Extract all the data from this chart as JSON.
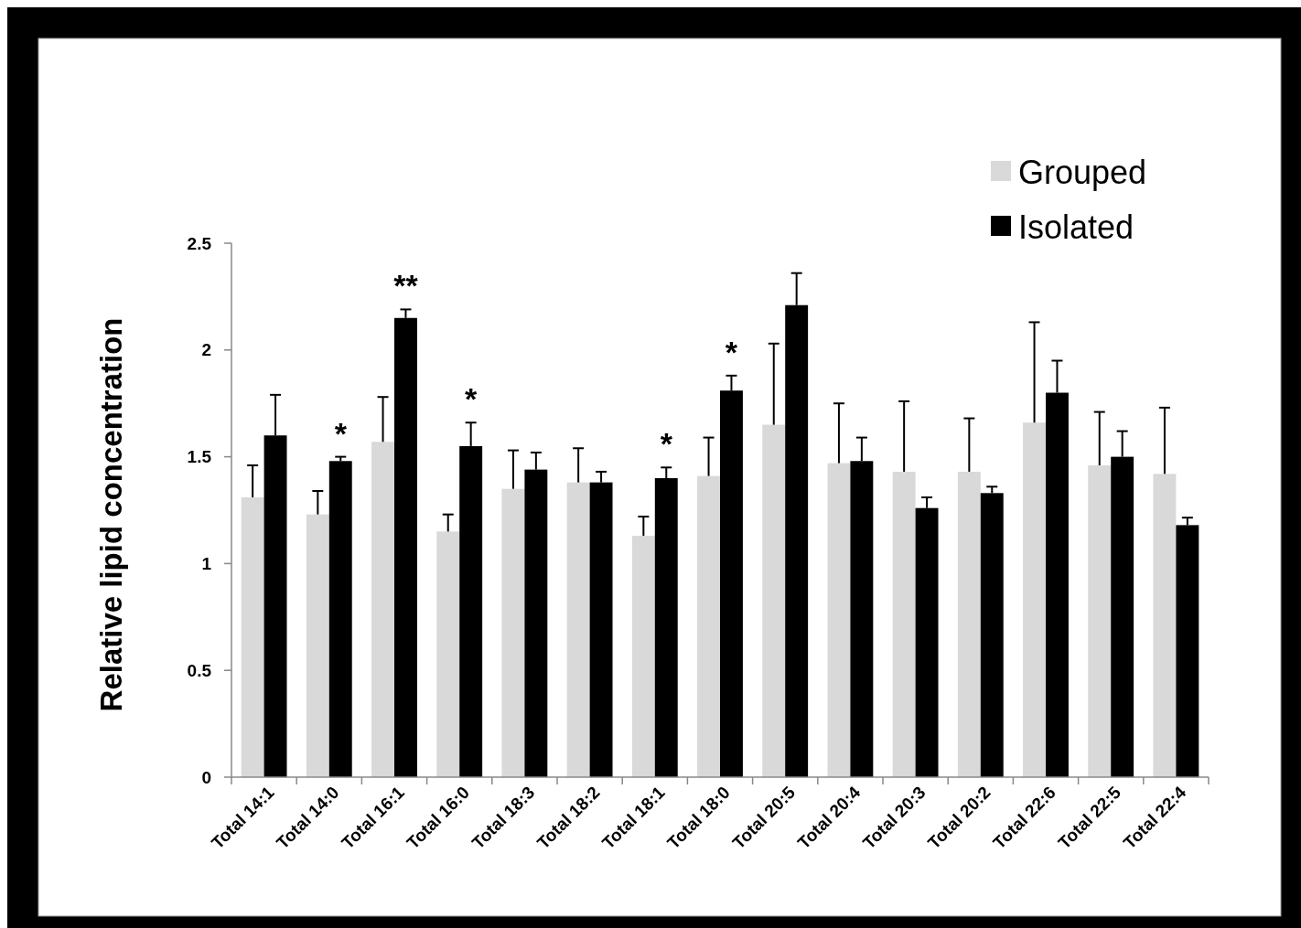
{
  "chart_data": {
    "type": "bar",
    "ylabel": "Relative lipid concentration",
    "categories": [
      "Total 14:1",
      "Total 14:0",
      "Total 16:1",
      "Total 16:0",
      "Total 18:3",
      "Total 18:2",
      "Total 18:1",
      "Total 18:0",
      "Total 20:5",
      "Total 20:4",
      "Total 20:3",
      "Total 20:2",
      "Total 22:6",
      "Total 22:5",
      "Total 22:4"
    ],
    "series": [
      {
        "name": "Grouped",
        "color": "#d9d9d9",
        "values": [
          1.31,
          1.23,
          1.57,
          1.15,
          1.35,
          1.38,
          1.13,
          1.41,
          1.65,
          1.47,
          1.43,
          1.43,
          1.66,
          1.46,
          1.42
        ],
        "errors": [
          [
            1.31,
            1.46
          ],
          [
            1.23,
            1.34
          ],
          [
            1.57,
            1.78
          ],
          [
            1.15,
            1.23
          ],
          [
            1.35,
            1.53
          ],
          [
            1.38,
            1.54
          ],
          [
            1.13,
            1.22
          ],
          [
            1.41,
            1.59
          ],
          [
            1.65,
            2.03
          ],
          [
            1.47,
            1.75
          ],
          [
            1.43,
            1.76
          ],
          [
            1.43,
            1.68
          ],
          [
            1.66,
            2.13
          ],
          [
            1.46,
            1.71
          ],
          [
            1.42,
            1.73
          ]
        ]
      },
      {
        "name": "Isolated",
        "color": "#000000",
        "values": [
          1.6,
          1.48,
          2.15,
          1.55,
          1.44,
          1.38,
          1.4,
          1.81,
          2.21,
          1.48,
          1.26,
          1.33,
          1.8,
          1.5,
          1.18
        ],
        "errors": [
          [
            1.6,
            1.79
          ],
          [
            1.48,
            1.5
          ],
          [
            2.15,
            2.19
          ],
          [
            1.55,
            1.66
          ],
          [
            1.44,
            1.52
          ],
          [
            1.38,
            1.43
          ],
          [
            1.4,
            1.45
          ],
          [
            1.81,
            1.88
          ],
          [
            2.21,
            2.36
          ],
          [
            1.48,
            1.59
          ],
          [
            1.26,
            1.31
          ],
          [
            1.33,
            1.36
          ],
          [
            1.8,
            1.95
          ],
          [
            1.5,
            1.62
          ],
          [
            1.18,
            1.215
          ]
        ]
      }
    ],
    "ylim": [
      0,
      2.5
    ],
    "yticks": [
      0,
      0.5,
      1,
      1.5,
      2,
      2.5
    ],
    "grid": false,
    "legend": "top right",
    "annotations": [
      {
        "text": "*",
        "x": "Total 14:0",
        "y": 1.48
      },
      {
        "text": "**",
        "x": "Total 16:1",
        "y": 2.15
      },
      {
        "text": "*",
        "x": "Total 16:0",
        "y": 1.55
      },
      {
        "text": "*",
        "x": "Total 18:1",
        "y": 1.4
      },
      {
        "text": "*",
        "x": "Total 18:0",
        "y": 1.81
      }
    ]
  }
}
